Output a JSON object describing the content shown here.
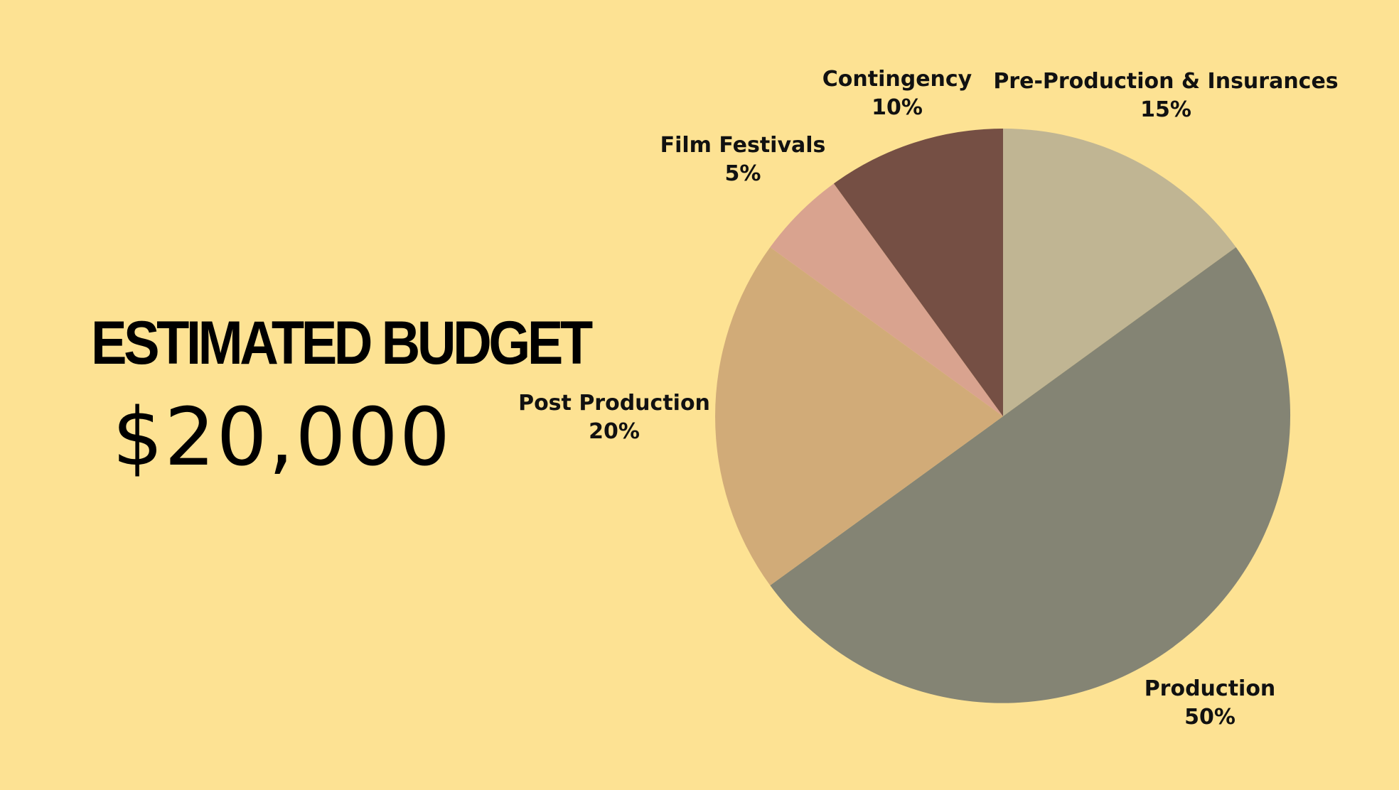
{
  "heading": {
    "title": "ESTIMATED BUDGET",
    "amount": "$20,000"
  },
  "chart_data": {
    "type": "pie",
    "title": "",
    "categories": [
      "Pre-Production & Insurances",
      "Production",
      "Post Production",
      "Film Festivals",
      "Contingency"
    ],
    "values": [
      15,
      50,
      20,
      5,
      10
    ],
    "value_labels": [
      "15%",
      "50%",
      "20%",
      "5%",
      "10%"
    ],
    "colors": [
      "#C0B593",
      "#848474",
      "#D1AB78",
      "#D9A38F",
      "#754F44"
    ],
    "start_angle": "12 o'clock",
    "direction": "clockwise",
    "labels_placement": "outside"
  },
  "colors": {
    "background": "#FDE293",
    "text": "#111111"
  }
}
